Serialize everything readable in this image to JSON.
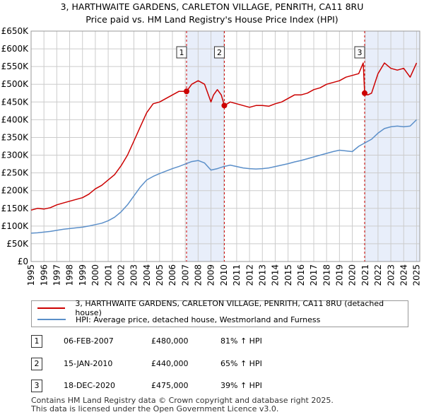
{
  "titles": {
    "line1": "3, HARTHWAITE GARDENS, CARLETON VILLAGE, PENRITH, CA11 8RU",
    "line2": "Price paid vs. HM Land Registry's House Price Index (HPI)"
  },
  "colors": {
    "property": "#cc0000",
    "hpi": "#5b8fc9",
    "shade": "#e8eefa",
    "grid": "#cccccc",
    "vline": "#cc0000"
  },
  "chart_data": {
    "type": "line",
    "title": "Price paid vs. HM Land Registry's House Price Index (HPI)",
    "xlabel": "",
    "ylabel": "",
    "xlim": [
      1995,
      2025.25
    ],
    "ylim": [
      0,
      650000
    ],
    "x_ticks": [
      "1995",
      "1996",
      "1997",
      "1998",
      "1999",
      "2000",
      "2001",
      "2002",
      "2003",
      "2004",
      "2005",
      "2006",
      "2007",
      "2008",
      "2009",
      "2010",
      "2011",
      "2012",
      "2013",
      "2014",
      "2015",
      "2016",
      "2017",
      "2018",
      "2019",
      "2020",
      "2021",
      "2022",
      "2023",
      "2024",
      "2025"
    ],
    "y_ticks": [
      {
        "value": 0,
        "label": "£0"
      },
      {
        "value": 50000,
        "label": "£50K"
      },
      {
        "value": 100000,
        "label": "£100K"
      },
      {
        "value": 150000,
        "label": "£150K"
      },
      {
        "value": 200000,
        "label": "£200K"
      },
      {
        "value": 250000,
        "label": "£250K"
      },
      {
        "value": 300000,
        "label": "£300K"
      },
      {
        "value": 350000,
        "label": "£350K"
      },
      {
        "value": 400000,
        "label": "£400K"
      },
      {
        "value": 450000,
        "label": "£450K"
      },
      {
        "value": 500000,
        "label": "£500K"
      },
      {
        "value": 550000,
        "label": "£550K"
      },
      {
        "value": 600000,
        "label": "£600K"
      },
      {
        "value": 650000,
        "label": "£650K"
      }
    ],
    "shaded_ranges": [
      [
        2007.1,
        2010.04
      ],
      [
        2020.96,
        2025.25
      ]
    ],
    "series": [
      {
        "name": "3, HARTHWAITE GARDENS, CARLETON VILLAGE, PENRITH, CA11 8RU (detached house)",
        "x": [
          1995,
          1995.5,
          1996,
          1996.5,
          1997,
          1997.5,
          1998,
          1998.5,
          1999,
          1999.5,
          2000,
          2000.5,
          2001,
          2001.5,
          2002,
          2002.5,
          2003,
          2003.5,
          2004,
          2004.5,
          2005,
          2005.5,
          2006,
          2006.5,
          2007.1,
          2007.5,
          2008,
          2008.5,
          2009,
          2009.2,
          2009.5,
          2009.8,
          2010.04,
          2010.5,
          2011,
          2011.5,
          2012,
          2012.5,
          2013,
          2013.5,
          2014,
          2014.5,
          2015,
          2015.5,
          2016,
          2016.5,
          2017,
          2017.5,
          2018,
          2018.5,
          2019,
          2019.5,
          2020,
          2020.5,
          2020.85,
          2020.96,
          2021.2,
          2021.5,
          2022,
          2022.5,
          2023,
          2023.5,
          2024,
          2024.5,
          2025
        ],
        "values": [
          145000,
          150000,
          148000,
          152000,
          160000,
          165000,
          170000,
          175000,
          180000,
          190000,
          205000,
          215000,
          230000,
          245000,
          270000,
          300000,
          340000,
          380000,
          420000,
          445000,
          450000,
          460000,
          470000,
          480000,
          480000,
          500000,
          510000,
          500000,
          450000,
          470000,
          485000,
          470000,
          440000,
          450000,
          445000,
          440000,
          435000,
          440000,
          440000,
          438000,
          445000,
          450000,
          460000,
          470000,
          470000,
          475000,
          485000,
          490000,
          500000,
          505000,
          510000,
          520000,
          525000,
          530000,
          560000,
          475000,
          470000,
          475000,
          530000,
          560000,
          545000,
          540000,
          545000,
          520000,
          560000
        ]
      },
      {
        "name": "HPI: Average price, detached house, Westmorland and Furness",
        "x": [
          1995,
          1995.5,
          1996,
          1996.5,
          1997,
          1997.5,
          1998,
          1998.5,
          1999,
          1999.5,
          2000,
          2000.5,
          2001,
          2001.5,
          2002,
          2002.5,
          2003,
          2003.5,
          2004,
          2004.5,
          2005,
          2005.5,
          2006,
          2006.5,
          2007,
          2007.5,
          2008,
          2008.5,
          2009,
          2009.5,
          2010,
          2010.5,
          2011,
          2011.5,
          2012,
          2012.5,
          2013,
          2013.5,
          2014,
          2014.5,
          2015,
          2015.5,
          2016,
          2016.5,
          2017,
          2017.5,
          2018,
          2018.5,
          2019,
          2019.5,
          2020,
          2020.5,
          2021,
          2021.5,
          2022,
          2022.5,
          2023,
          2023.5,
          2024,
          2024.5,
          2025
        ],
        "values": [
          80000,
          81000,
          83000,
          85000,
          88000,
          91000,
          93000,
          95000,
          97000,
          100000,
          104000,
          108000,
          115000,
          125000,
          140000,
          160000,
          185000,
          210000,
          230000,
          240000,
          248000,
          255000,
          262000,
          268000,
          275000,
          282000,
          285000,
          278000,
          258000,
          262000,
          268000,
          272000,
          268000,
          264000,
          262000,
          261000,
          262000,
          264000,
          268000,
          272000,
          276000,
          281000,
          285000,
          290000,
          295000,
          300000,
          305000,
          310000,
          314000,
          312000,
          310000,
          325000,
          335000,
          345000,
          362000,
          375000,
          380000,
          382000,
          380000,
          382000,
          400000
        ]
      }
    ],
    "annotations": [
      {
        "label": "1",
        "x": 2007.1,
        "value": 480000
      },
      {
        "label": "2",
        "x": 2010.04,
        "value": 440000
      },
      {
        "label": "3",
        "x": 2020.96,
        "value": 475000
      }
    ]
  },
  "legend": {
    "property_label": "3, HARTHWAITE GARDENS, CARLETON VILLAGE, PENRITH, CA11 8RU (detached house)",
    "hpi_label": "HPI: Average price, detached house, Westmorland and Furness"
  },
  "transactions": [
    {
      "badge": "1",
      "date": "06-FEB-2007",
      "price": "£480,000",
      "hpi": "81% ↑ HPI"
    },
    {
      "badge": "2",
      "date": "15-JAN-2010",
      "price": "£440,000",
      "hpi": "65% ↑ HPI"
    },
    {
      "badge": "3",
      "date": "18-DEC-2020",
      "price": "£475,000",
      "hpi": "39% ↑ HPI"
    }
  ],
  "footer": {
    "line1": "Contains HM Land Registry data © Crown copyright and database right 2025.",
    "line2": "This data is licensed under the Open Government Licence v3.0."
  }
}
